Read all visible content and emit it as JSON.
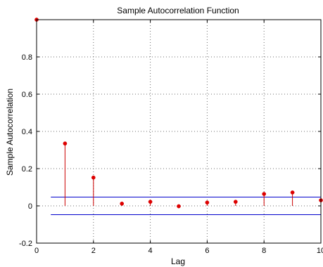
{
  "chart_data": {
    "type": "stem",
    "title": "Sample Autocorrelation Function",
    "xlabel": "Lag",
    "ylabel": "Sample Autocorrelation",
    "xlim": [
      0,
      10
    ],
    "ylim": [
      -0.2,
      1.0
    ],
    "xticks": [
      0,
      2,
      4,
      6,
      8,
      10
    ],
    "yticks": [
      -0.2,
      0,
      0.2,
      0.4,
      0.6,
      0.8
    ],
    "xtick_labels": [
      "0",
      "2",
      "4",
      "6",
      "8",
      "10"
    ],
    "ytick_labels": [
      "-0.2",
      "0",
      "0.2",
      "0.4",
      "0.6",
      "0.8"
    ],
    "grid": true,
    "series": [
      {
        "x": [
          0,
          1,
          2,
          3,
          4,
          5,
          6,
          7,
          8,
          9,
          10
        ],
        "values": [
          1.0,
          0.335,
          0.152,
          0.012,
          0.022,
          -0.002,
          0.018,
          0.022,
          0.064,
          0.072,
          0.03
        ]
      }
    ],
    "confidence_bounds": [
      0.047,
      -0.047
    ],
    "bounds_x_range": [
      0.5,
      10
    ],
    "colors": {
      "stem": "#cc0000",
      "marker": "#dd0000",
      "bounds": "#0000cc",
      "grid": "#6e6e6e",
      "axes": "#000000"
    }
  }
}
